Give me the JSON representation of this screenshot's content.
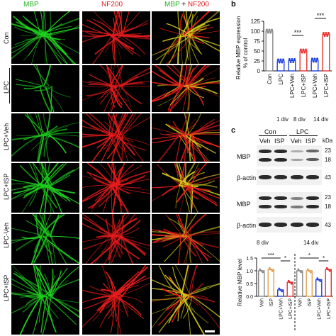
{
  "panel_a": {
    "col_headers": {
      "mbp": "MBP",
      "nf200": "NF200",
      "merge_a": "MBP",
      "merge_plus": " + ",
      "merge_b": "NF200"
    },
    "rows": [
      "Con",
      "LPC",
      "LPC+Veh",
      "LPC+ISP",
      "LPC-Veh",
      "LPC+ISP"
    ],
    "colors": {
      "green": "#1fd01f",
      "red": "#e81c1c",
      "yellow": "#d6d21a",
      "header_green": "#21b321",
      "header_red": "#e02020"
    }
  },
  "panel_b": {
    "letter": "b",
    "ylabel": "Relative MBP expression",
    "ylabel2": "% of control",
    "yticks": [
      "0",
      "25",
      "50",
      "75",
      "100",
      "125"
    ],
    "categories": [
      "Con",
      "LPC",
      "LPC+Veh",
      "LPC+ISP",
      "LPC+Veh",
      "LPC+ISP"
    ],
    "groups": [
      "1 div",
      "8 div",
      "14 div"
    ],
    "significance": [
      "***",
      "***"
    ]
  },
  "panel_c": {
    "letter": "c",
    "group_con": "Con",
    "group_lpc": "LPC",
    "lanes": [
      "Veh",
      "ISP",
      "Veh",
      "ISP"
    ],
    "kda_label": "kDa",
    "blot_labels": [
      "MBP",
      "β-actin",
      "MBP",
      "β-actin"
    ],
    "markers": [
      "23",
      "18",
      "43",
      "23",
      "18",
      "43"
    ],
    "ylabel": "Relative MBP level",
    "yticks": [
      "0.0",
      "0.5",
      "1.0",
      "1.5"
    ],
    "time_8": "8 div",
    "time_14": "14 div",
    "significance": [
      "***",
      "*",
      "*",
      "*"
    ],
    "xcategories": [
      "Veh",
      "ISP",
      "LPC+Veh",
      "LPC+ISP",
      "Veh",
      "ISP",
      "LPC+Veh",
      "LPC+ISP"
    ]
  },
  "chart_data": [
    {
      "type": "bar",
      "title": "",
      "ylabel": "Relative MBP expression % of control",
      "categories": [
        "Con",
        "LPC",
        "LPC+Veh",
        "LPC+ISP",
        "LPC+Veh",
        "LPC+ISP"
      ],
      "values": [
        100,
        25,
        26,
        50,
        27,
        92
      ],
      "ylim": [
        0,
        125
      ],
      "colors": [
        "#888888",
        "#2040e0",
        "#2040e0",
        "#e83030",
        "#2040e0",
        "#e83030"
      ]
    },
    {
      "type": "bar",
      "title": "",
      "ylabel": "Relative MBP level",
      "categories": [
        "Veh",
        "ISP",
        "LPC+Veh",
        "LPC+ISP",
        "Veh",
        "ISP",
        "LPC+Veh",
        "LPC+ISP"
      ],
      "values": [
        1.0,
        1.05,
        0.25,
        0.55,
        1.0,
        1.0,
        0.65,
        1.05
      ],
      "ylim": [
        0,
        1.5
      ],
      "colors": [
        "#888888",
        "#e0a050",
        "#2040e0",
        "#e83030",
        "#888888",
        "#e0a050",
        "#2040e0",
        "#e83030"
      ]
    }
  ]
}
